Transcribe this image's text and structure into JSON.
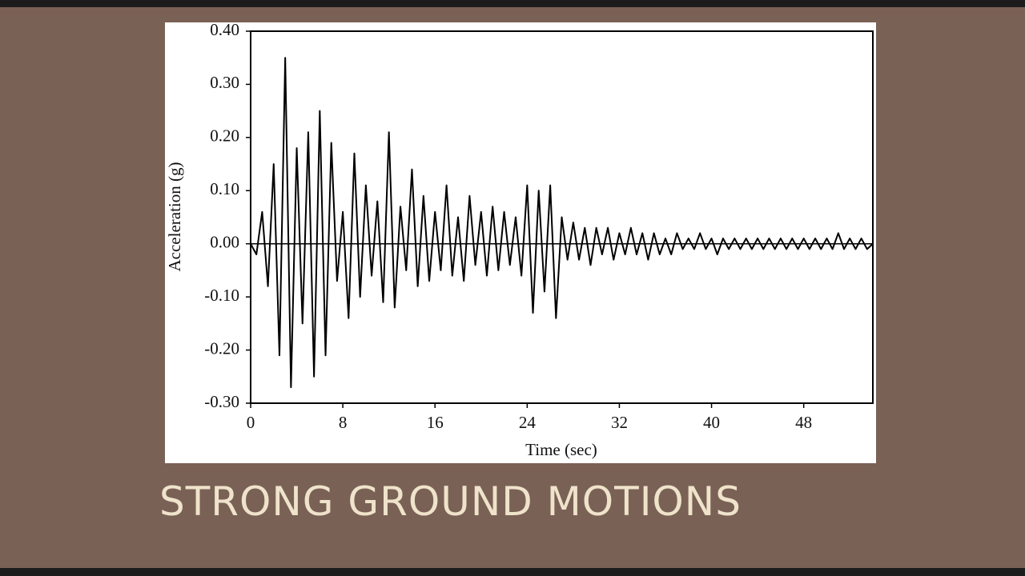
{
  "slide_title": "STRONG GROUND MOTIONS",
  "chart_data": {
    "type": "line",
    "xlabel": "Time (sec)",
    "ylabel": "Acceleration (g)",
    "x": [
      0,
      0.5,
      1,
      1.5,
      2,
      2.5,
      3,
      3.5,
      4,
      4.5,
      5,
      5.5,
      6,
      6.5,
      7,
      7.5,
      8,
      8.5,
      9,
      9.5,
      10,
      10.5,
      11,
      11.5,
      12,
      12.5,
      13,
      13.5,
      14,
      14.5,
      15,
      15.5,
      16,
      16.5,
      17,
      17.5,
      18,
      18.5,
      19,
      19.5,
      20,
      20.5,
      21,
      21.5,
      22,
      22.5,
      23,
      23.5,
      24,
      24.5,
      25,
      25.5,
      26,
      26.5,
      27,
      27.5,
      28,
      28.5,
      29,
      29.5,
      30,
      30.5,
      31,
      31.5,
      32,
      32.5,
      33,
      33.5,
      34,
      34.5,
      35,
      35.5,
      36,
      36.5,
      37,
      37.5,
      38,
      38.5,
      39,
      39.5,
      40,
      40.5,
      41,
      41.5,
      42,
      42.5,
      43,
      43.5,
      44,
      44.5,
      45,
      45.5,
      46,
      46.5,
      47,
      47.5,
      48,
      48.5,
      49,
      49.5,
      50,
      50.5,
      51,
      51.5,
      52,
      52.5,
      53,
      53.5,
      54
    ],
    "series": [
      {
        "color": "#000000",
        "values": [
          0,
          -0.02,
          0.06,
          -0.08,
          0.15,
          -0.21,
          0.35,
          -0.27,
          0.18,
          -0.15,
          0.21,
          -0.25,
          0.25,
          -0.21,
          0.19,
          -0.07,
          0.06,
          -0.14,
          0.17,
          -0.1,
          0.11,
          -0.06,
          0.08,
          -0.11,
          0.21,
          -0.12,
          0.07,
          -0.05,
          0.14,
          -0.08,
          0.09,
          -0.07,
          0.06,
          -0.05,
          0.11,
          -0.06,
          0.05,
          -0.07,
          0.09,
          -0.04,
          0.06,
          -0.06,
          0.07,
          -0.05,
          0.06,
          -0.04,
          0.05,
          -0.06,
          0.11,
          -0.13,
          0.1,
          -0.09,
          0.11,
          -0.14,
          0.05,
          -0.03,
          0.04,
          -0.03,
          0.03,
          -0.04,
          0.03,
          -0.02,
          0.03,
          -0.03,
          0.02,
          -0.02,
          0.03,
          -0.02,
          0.02,
          -0.03,
          0.02,
          -0.02,
          0.01,
          -0.02,
          0.02,
          -0.01,
          0.01,
          -0.01,
          0.02,
          -0.01,
          0.01,
          -0.02,
          0.01,
          -0.01,
          0.01,
          -0.01,
          0.01,
          -0.01,
          0.01,
          -0.01,
          0.01,
          -0.01,
          0.01,
          -0.01,
          0.01,
          -0.01,
          0.01,
          -0.01,
          0.01,
          -0.01,
          0.01,
          -0.01,
          0.02,
          -0.01,
          0.01,
          -0.01,
          0.01,
          -0.01,
          0
        ]
      }
    ],
    "xlim": [
      0,
      54
    ],
    "xticks": [
      0,
      8,
      16,
      24,
      32,
      40,
      48
    ],
    "ylim": [
      -0.3,
      0.4
    ],
    "yticks": [
      {
        "value": 0.4,
        "label": "0.40"
      },
      {
        "value": 0.3,
        "label": "0.30"
      },
      {
        "value": 0.2,
        "label": "0.20"
      },
      {
        "value": 0.1,
        "label": "0.10"
      },
      {
        "value": 0,
        "label": "0.00"
      },
      {
        "value": -0.1,
        "label": "-0.10"
      },
      {
        "value": -0.2,
        "label": "-0.20"
      },
      {
        "value": -0.3,
        "label": "-0.30"
      }
    ]
  }
}
